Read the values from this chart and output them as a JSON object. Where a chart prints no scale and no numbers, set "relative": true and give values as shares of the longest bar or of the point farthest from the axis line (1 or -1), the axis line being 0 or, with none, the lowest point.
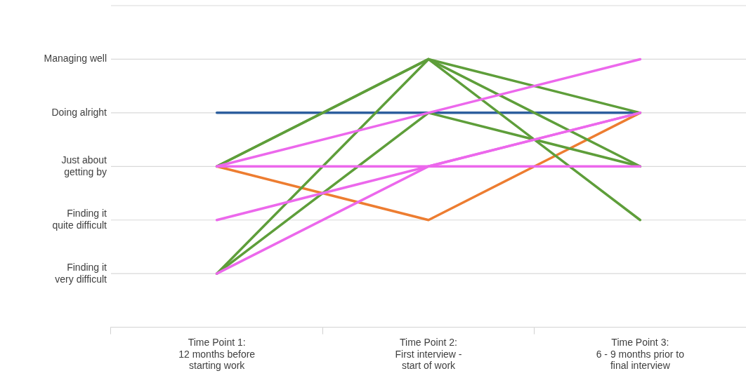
{
  "chart_data": {
    "type": "line",
    "relative": true,
    "categories": [
      "Time Point 1:\n12 months before\nstarting work",
      "Time Point 2:\nFirst interview -\nstart of work",
      "Time Point 3:\n6 - 9 months prior to\nfinal interview"
    ],
    "series": [
      {
        "color": "#2e5f9e",
        "values": [
          0.8,
          0.8,
          0.8
        ]
      },
      {
        "color": "#ed7d31",
        "values": [
          0.6,
          0.4,
          0.8
        ]
      },
      {
        "color": "#5e9e3a",
        "values": [
          0.6,
          1,
          0.8
        ]
      },
      {
        "color": "#5e9e3a",
        "values": [
          0.2,
          1,
          0.4
        ]
      },
      {
        "color": "#5e9e3a",
        "values": [
          0.2,
          0.8,
          0.6
        ]
      },
      {
        "color": "#5e9e3a",
        "values": [
          0.6,
          1,
          0.6
        ]
      },
      {
        "color": "#ec68ec",
        "values": [
          0.6,
          0.8,
          1
        ]
      },
      {
        "color": "#ec68ec",
        "values": [
          0.6,
          0.6,
          0.6
        ]
      },
      {
        "color": "#ec68ec",
        "values": [
          0.4,
          0.6,
          0.8
        ]
      },
      {
        "color": "#ec68ec",
        "values": [
          0.2,
          0.6,
          0.8
        ]
      }
    ],
    "ref_lines": [
      {
        "axis": "y",
        "value": 0.2,
        "label": "Finding it\nvery difficult",
        "color": "#d9d9d9"
      },
      {
        "axis": "y",
        "value": 0.4,
        "label": "Finding it\nquite difficult",
        "color": "#d9d9d9"
      },
      {
        "axis": "y",
        "value": 0.6,
        "label": "Just about\ngetting by",
        "color": "#d9d9d9"
      },
      {
        "axis": "y",
        "value": 0.8,
        "label": "Doing alright",
        "color": "#d9d9d9"
      },
      {
        "axis": "y",
        "value": 1,
        "label": "Managing well",
        "color": "#d9d9d9"
      },
      {
        "axis": "y",
        "value": 1.2,
        "color": "#d9d9d9"
      }
    ],
    "legend": false,
    "marker": "none",
    "line_style": "solid"
  }
}
